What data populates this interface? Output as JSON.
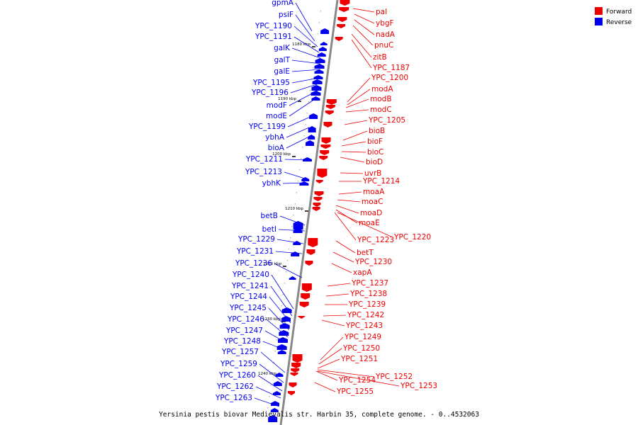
{
  "caption": "Yersinia pestis biovar Medievalis str. Harbin 35, complete genome. - 0..4532063",
  "legend": [
    {
      "label": "Forward",
      "color": "#ee0000"
    },
    {
      "label": "Reverse",
      "color": "#0000ee"
    }
  ],
  "colors": {
    "forward": "#ee0000",
    "reverse": "#0000ee",
    "axis": "#888888"
  },
  "ticks": [
    "1180 kbp",
    "1190 kbp",
    "1200 kbp",
    "1210 kbp",
    "1220 kbp",
    "1230 kbp",
    "1240 kbp"
  ],
  "reverse_genes": [
    "gpmA",
    "psiF",
    "YPC_1190",
    "YPC_1191",
    "galK",
    "galT",
    "galE",
    "YPC_1195",
    "YPC_1196",
    "modF",
    "modE",
    "YPC_1199",
    "ybhA",
    "bioA",
    "YPC_1211",
    "YPC_1213",
    "ybhK",
    "betB",
    "betI",
    "YPC_1229",
    "YPC_1231",
    "YPC_1236",
    "YPC_1240",
    "YPC_1241",
    "YPC_1244",
    "YPC_1245",
    "YPC_1246",
    "YPC_1247",
    "YPC_1248",
    "YPC_1257",
    "YPC_1259",
    "YPC_1260",
    "YPC_1262",
    "YPC_1263"
  ],
  "forward_genes": [
    "pal",
    "ybgF",
    "nadA",
    "pnuC",
    "zitB",
    "YPC_1187",
    "YPC_1200",
    "modA",
    "modB",
    "modC",
    "YPC_1205",
    "bioB",
    "bioF",
    "bioC",
    "bioD",
    "uvrB",
    "YPC_1214",
    "moaA",
    "moaC",
    "moaD",
    "moaE",
    "YPC_1223",
    "YPC_1220",
    "betT",
    "YPC_1230",
    "xapA",
    "YPC_1237",
    "YPC_1238",
    "YPC_1239",
    "YPC_1242",
    "YPC_1243",
    "YPC_1249",
    "YPC_1250",
    "YPC_1251",
    "YPC_1254",
    "YPC_1252",
    "YPC_1253",
    "YPC_1255"
  ]
}
